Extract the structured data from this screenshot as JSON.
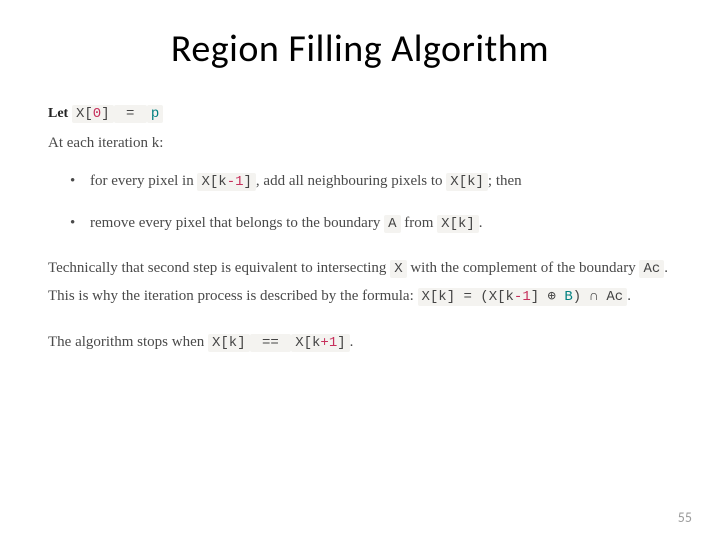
{
  "title": "Region Filling Algorithm",
  "let_label": "Let",
  "let_expr_parts": {
    "a": "X[",
    "b": "0",
    "c": "]",
    "eq": " = ",
    "p": "p"
  },
  "iter_text": "At each iteration k:",
  "bullets": {
    "b1_pre": "for every pixel in ",
    "b1_code1": {
      "a": "X[k",
      "m": "-1",
      "c": "]"
    },
    "b1_mid": ", add all neighbouring pixels to ",
    "b1_code2": "X[k]",
    "b1_post": "; then",
    "b2_pre": "remove every pixel that belongs to the boundary ",
    "b2_codeA": "A",
    "b2_mid": " from ",
    "b2_codeX": "X[k]",
    "b2_post": "."
  },
  "tech": {
    "pre1": "Technically that second step is equivalent to intersecting ",
    "X": "X",
    "pre2": " with the complement of the boundary ",
    "Ac": "Ac",
    "pre3": ". This is why the iteration process is described by the formula: ",
    "formula": {
      "a": "X[k] = (X[k",
      "m": "-1",
      "b": "] ⊕ ",
      "B": "B",
      "c": ") ∩ ",
      "Ac": "Ac"
    },
    "dot": "."
  },
  "stop": {
    "pre": "The algorithm stops when ",
    "lhs": "X[k]",
    "eq": " == ",
    "rhs_a": "X[k",
    "rhs_p": "+1",
    "rhs_c": "]",
    "dot": "."
  },
  "page_number": "55",
  "colors": {
    "bg": "#ffffff",
    "title": "#000000",
    "body_text": "#4a4a4a",
    "code_bg": "#f4f3f0",
    "code_num": "#c62f5b",
    "code_id": "#008080",
    "pagenum": "#9c9c9c"
  },
  "typography": {
    "title_family": "Calibri",
    "title_size_pt": 28,
    "body_family": "Georgia",
    "body_size_pt": 12,
    "mono_family": "Courier New"
  }
}
